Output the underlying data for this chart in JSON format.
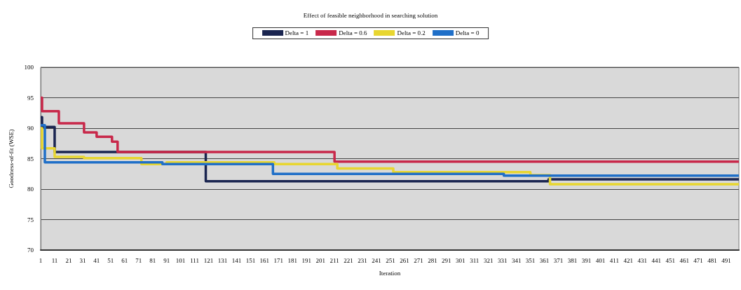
{
  "chart_data": {
    "type": "step",
    "title": "Effect of feasible neighborhood in searching solution",
    "xlabel": "Iteration",
    "ylabel": "Goodness-of-fit (WSE)",
    "xlim": [
      1,
      500
    ],
    "xticks": [
      1,
      11,
      21,
      31,
      41,
      51,
      61,
      71,
      81,
      91,
      101,
      111,
      121,
      131,
      141,
      151,
      161,
      171,
      181,
      191,
      201,
      211,
      221,
      231,
      241,
      251,
      261,
      271,
      281,
      291,
      301,
      311,
      321,
      331,
      341,
      351,
      361,
      371,
      381,
      391,
      401,
      411,
      421,
      431,
      441,
      451,
      461,
      471,
      481,
      491
    ],
    "ylim": [
      70,
      100
    ],
    "yticks": [
      70,
      75,
      80,
      85,
      90,
      95,
      100
    ],
    "grid": "y",
    "legend": "top",
    "marker": "none",
    "series": [
      {
        "name": "Delta = 1",
        "color": "#1a2550",
        "x": [
          1,
          2,
          11,
          119,
          364,
          500
        ],
        "values": [
          91.8,
          90.2,
          86.1,
          81.3,
          81.6,
          81.6
        ]
      },
      {
        "name": "Delta = 0.6",
        "color": "#c8284a",
        "x": [
          1,
          2,
          14,
          32,
          41,
          52,
          56,
          211,
          500
        ],
        "values": [
          95,
          92.8,
          90.8,
          89.3,
          88.6,
          87.8,
          86.1,
          84.5,
          84.5
        ]
      },
      {
        "name": "Delta = 0.2",
        "color": "#e8d630",
        "x": [
          1,
          2,
          11,
          32,
          73,
          91,
          168,
          213,
          253,
          351,
          365,
          500
        ],
        "values": [
          90,
          86.7,
          85.3,
          85.1,
          84.1,
          84.4,
          84.1,
          83.4,
          82.8,
          82.3,
          80.8,
          80.8
        ]
      },
      {
        "name": "Delta = 0",
        "color": "#1f6fc8",
        "x": [
          1,
          4,
          88,
          167,
          332,
          500
        ],
        "values": [
          90.5,
          84.4,
          84.1,
          82.5,
          82.2,
          82.2
        ]
      }
    ]
  }
}
